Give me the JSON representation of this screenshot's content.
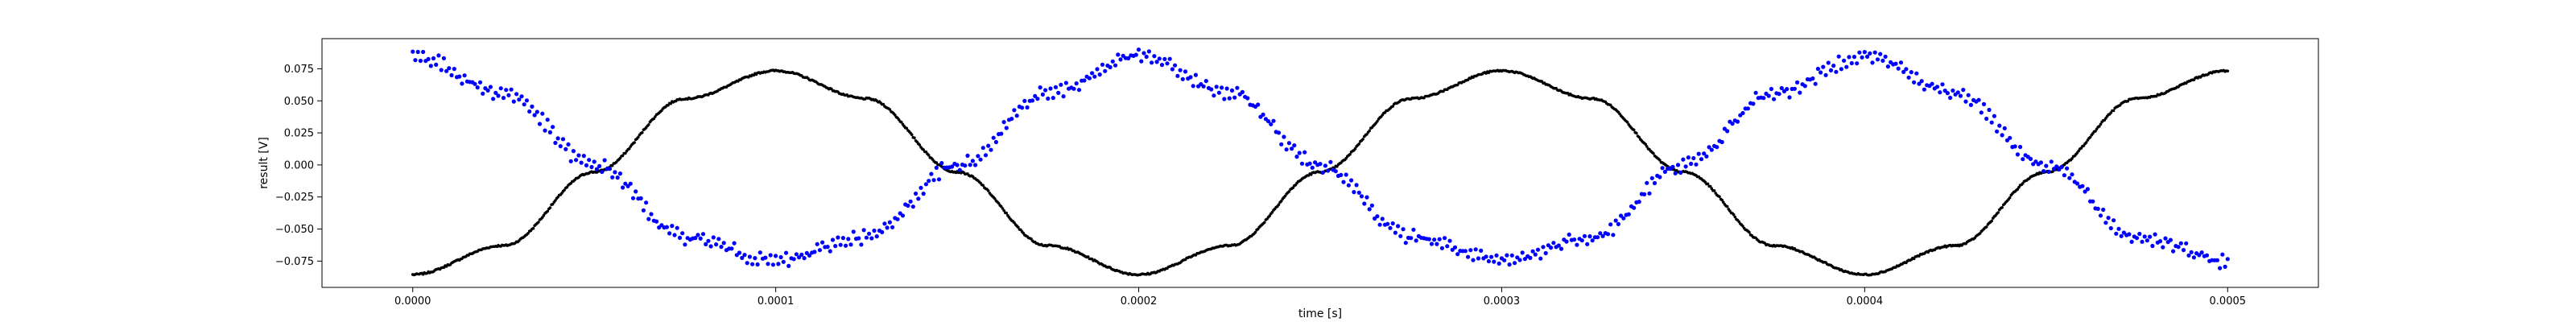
{
  "chart_data": {
    "type": "scatter",
    "title": "",
    "xlabel": "time [s]",
    "ylabel": "result [V]",
    "xlim": [
      -2.5e-05,
      0.000525
    ],
    "ylim": [
      -0.0955,
      0.0985
    ],
    "xticks": [
      0.0,
      0.0001,
      0.0002,
      0.0003,
      0.0004,
      0.0005
    ],
    "xtick_labels": [
      "0.0000",
      "0.0001",
      "0.0002",
      "0.0003",
      "0.0004",
      "0.0005"
    ],
    "yticks": [
      -0.075,
      -0.05,
      -0.025,
      0.0,
      0.025,
      0.05,
      0.075
    ],
    "ytick_labels": [
      "−0.075",
      "−0.050",
      "−0.025",
      "0.000",
      "0.025",
      "0.050",
      "0.075"
    ],
    "grid": false,
    "legend": "none",
    "series": [
      {
        "color": "#000000",
        "marker": "dot",
        "x": [
          0.0,
          2.5e-05,
          5e-05,
          7.5e-05,
          0.0001,
          0.000125,
          0.00015,
          0.000175,
          0.0002,
          0.000225,
          0.00025,
          0.000275,
          0.0003,
          0.000325,
          0.00035,
          0.000375,
          0.0004,
          0.000425,
          0.00045,
          0.000475,
          0.0005
        ],
        "y": [
          -0.0855,
          -0.0629,
          -0.0055,
          0.0517,
          0.0735,
          0.0517,
          -0.0055,
          -0.0629,
          -0.0855,
          -0.0629,
          -0.0055,
          0.0517,
          0.0735,
          0.0517,
          -0.0055,
          -0.0629,
          -0.0855,
          -0.0629,
          -0.0055,
          0.0517,
          0.0735
        ]
      },
      {
        "color": "#0000ff",
        "marker": "dot",
        "x": [
          0.0,
          2.5e-05,
          5e-05,
          7.5e-05,
          0.0001,
          0.000125,
          0.00015,
          0.000175,
          0.0002,
          0.000225,
          0.00025,
          0.000275,
          0.0003,
          0.000325,
          0.00035,
          0.000375,
          0.0004,
          0.000425,
          0.00045,
          0.000475,
          0.0005
        ],
        "y": [
          0.085,
          0.0561,
          0.0,
          -0.0561,
          -0.075,
          -0.0561,
          0.0,
          0.0561,
          0.085,
          0.0561,
          0.0,
          -0.0561,
          -0.075,
          -0.0561,
          0.0,
          0.0561,
          0.085,
          0.0561,
          0.0,
          -0.0561,
          -0.075
        ]
      }
    ]
  }
}
